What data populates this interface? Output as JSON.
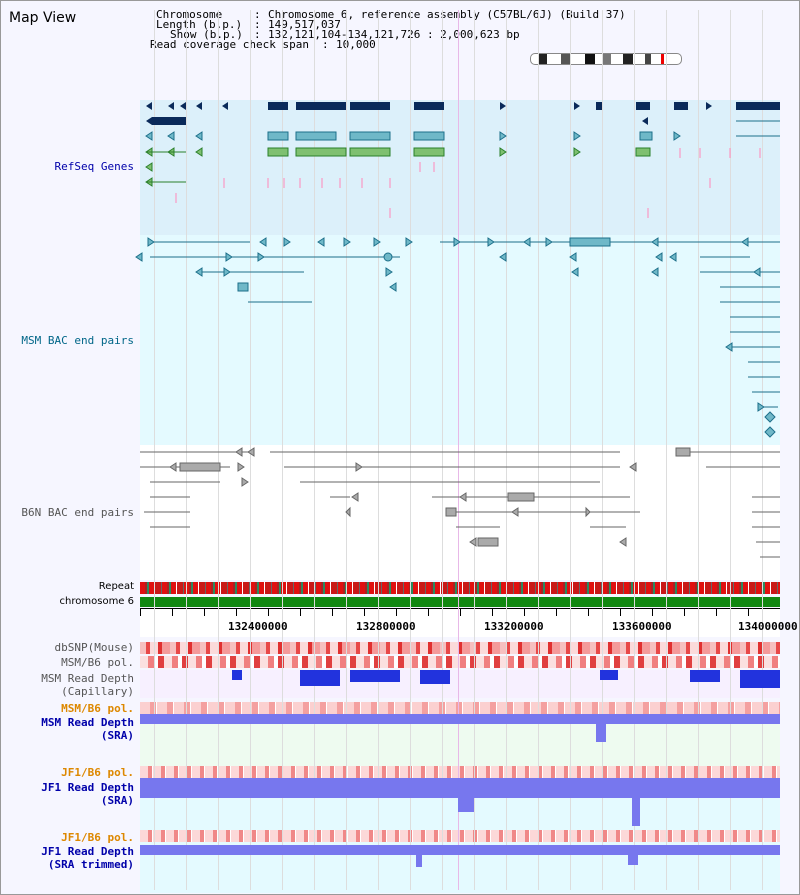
{
  "app": {
    "title": "Map View"
  },
  "header": {
    "chromosome_label": "Chromosome",
    "chromosome_value": "Chromosome 6, reference assembly (C57BL/6J) (Build 37)",
    "length_label": "Length (b.p.)",
    "length_value": "149,517,037",
    "show_label": "Show (b.p.)",
    "show_value": "132,121,104-134,121,726 : 2,000,623 bp",
    "coverage_label": "Read coverage check span",
    "coverage_value": "10,000"
  },
  "tracks": {
    "refseq": "RefSeq Genes",
    "msm_bac": "MSM BAC end pairs",
    "b6n_bac": "B6N BAC end pairs",
    "repeat": "Repeat",
    "chromosome": "chromosome 6",
    "dbsnp": "dbSNP(Mouse)",
    "msm_pol": "MSM/B6 pol.",
    "msm_read_cap_1": "MSM Read Depth",
    "msm_read_cap_2": "(Capillary)",
    "msm_pol_sra": "MSM/B6 pol.",
    "msm_read_sra_1": "MSM Read Depth",
    "msm_read_sra_2": "(SRA)",
    "jf1_pol_sra": "JF1/B6 pol.",
    "jf1_read_sra_1": "JF1 Read Depth",
    "jf1_read_sra_2": "(SRA)",
    "jf1_pol_trim": "JF1/B6 pol.",
    "jf1_read_trim_1": "JF1 Read Depth",
    "jf1_read_trim_2": "(SRA trimmed)"
  },
  "axis": {
    "ticks": [
      "132400000",
      "132800000",
      "133200000",
      "133600000",
      "134000000"
    ]
  },
  "colors": {
    "refseq_bg": "#dcf0fa",
    "msm_bg": "#e4faff",
    "b6n_bg": "#ffffff",
    "gene_dark": "#0a2a5a",
    "gene_teal": "#1c6f8a",
    "gene_green": "#2a7f2a",
    "pink": "#ff88bb",
    "bac_grey": "#666666",
    "repeat_red": "#e01010",
    "chrom_green": "#118811",
    "snp_red": "#e83030",
    "depth_blue": "#2233dd",
    "label_blue": "#0000aa",
    "label_teal": "#006688",
    "label_orange": "#dd8800",
    "label_grey": "#555555"
  }
}
